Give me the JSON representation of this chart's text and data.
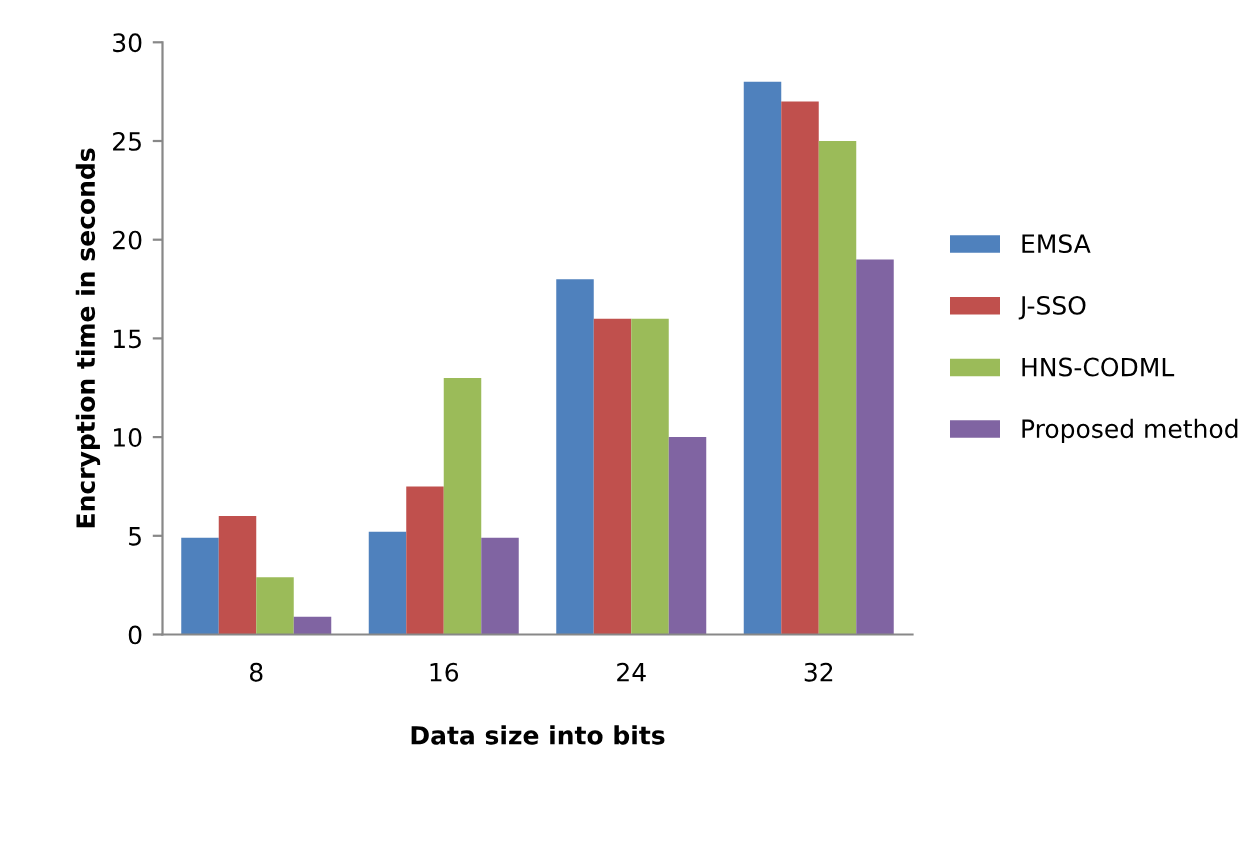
{
  "chart_data": {
    "type": "bar",
    "xlabel": "Data size into bits",
    "ylabel": "Encryption time in seconds",
    "categories": [
      "8",
      "16",
      "24",
      "32"
    ],
    "series": [
      {
        "name": "EMSA",
        "color": "#4f81bd",
        "values": [
          4.9,
          5.2,
          18,
          28
        ]
      },
      {
        "name": "J-SSO",
        "color": "#c0504d",
        "values": [
          6,
          7.5,
          16,
          27
        ]
      },
      {
        "name": "HNS-CODML",
        "color": "#9bbb59",
        "values": [
          2.9,
          13,
          16,
          25
        ]
      },
      {
        "name": "Proposed method",
        "color": "#8064a2",
        "values": [
          0.9,
          4.9,
          10,
          19
        ]
      }
    ],
    "ylim": [
      0,
      30
    ],
    "yticks": [
      0,
      5,
      10,
      15,
      20,
      25,
      30
    ],
    "grid": false,
    "legend": "right"
  }
}
